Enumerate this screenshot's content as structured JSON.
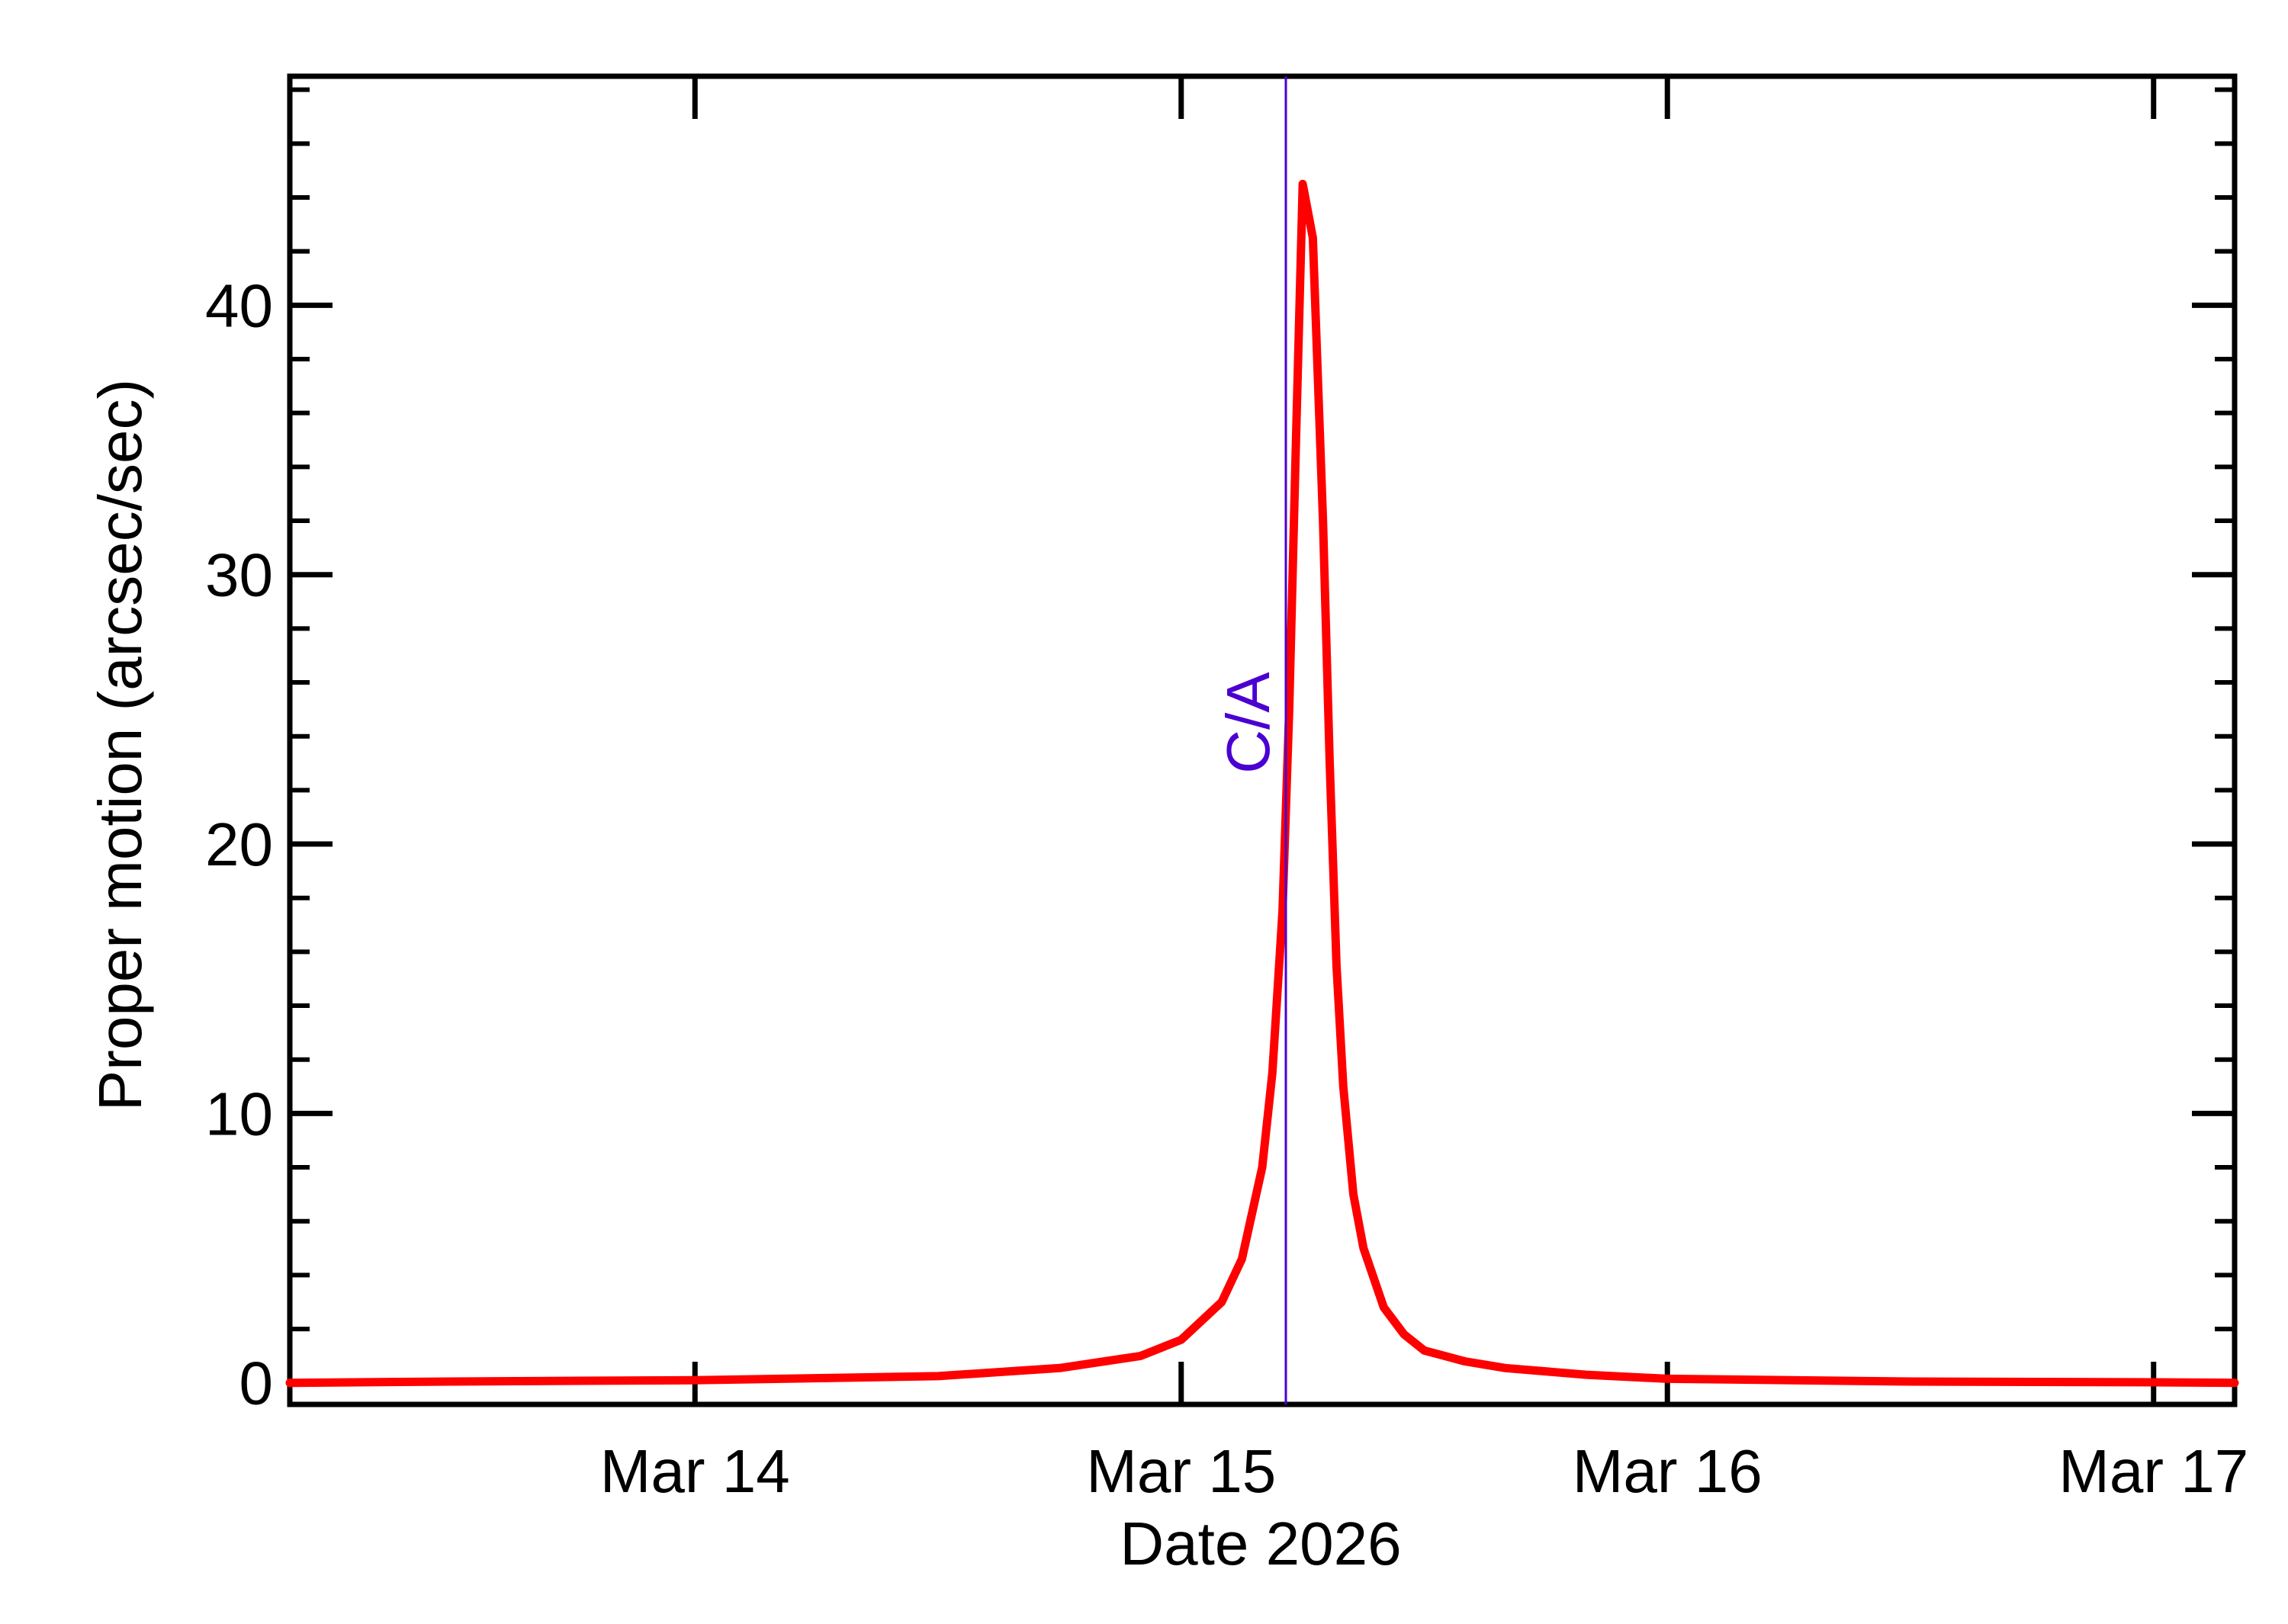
{
  "chart_data": {
    "type": "line",
    "xlabel": "Date 2026",
    "ylabel": "Proper motion (arcsec/sec)",
    "x_ticks": [
      {
        "value": "2026-03-14",
        "label": "Mar 14"
      },
      {
        "value": "2026-03-15",
        "label": "Mar 15"
      },
      {
        "value": "2026-03-16",
        "label": "Mar 16"
      },
      {
        "value": "2026-03-17",
        "label": "Mar 17"
      }
    ],
    "y_ticks": [
      0,
      10,
      20,
      30,
      40
    ],
    "xlim": [
      "2026-03-13 04:00",
      "2026-03-17 04:00"
    ],
    "ylim": [
      -0.8,
      48.5
    ],
    "series": [
      {
        "color": "#ff0000",
        "x": [
          "2026-03-13 04:00",
          "2026-03-13 12:00",
          "2026-03-14 00:00",
          "2026-03-14 12:00",
          "2026-03-14 18:00",
          "2026-03-14 22:00",
          "2026-03-15 00:00",
          "2026-03-15 02:00",
          "2026-03-15 03:00",
          "2026-03-15 04:00",
          "2026-03-15 04:30",
          "2026-03-15 05:00",
          "2026-03-15 05:20",
          "2026-03-15 05:40",
          "2026-03-15 06:00",
          "2026-03-15 06:30",
          "2026-03-15 07:00",
          "2026-03-15 07:20",
          "2026-03-15 07:40",
          "2026-03-15 08:00",
          "2026-03-15 08:30",
          "2026-03-15 09:00",
          "2026-03-15 10:00",
          "2026-03-15 11:00",
          "2026-03-15 12:00",
          "2026-03-15 14:00",
          "2026-03-15 16:00",
          "2026-03-15 20:00",
          "2026-03-16 00:00",
          "2026-03-16 12:00",
          "2026-03-17 00:00",
          "2026-03-17 04:00"
        ],
        "y": [
          0.0,
          0.05,
          0.1,
          0.25,
          0.55,
          1.0,
          1.6,
          3.0,
          4.6,
          8.0,
          11.5,
          17.5,
          25.0,
          35.0,
          44.5,
          42.5,
          32.0,
          23.0,
          15.5,
          11.0,
          7.0,
          5.0,
          2.8,
          1.8,
          1.2,
          0.8,
          0.55,
          0.3,
          0.15,
          0.05,
          0.02,
          0.0
        ]
      }
    ],
    "annotations": [
      {
        "label": "C/A",
        "x": "2026-03-15 05:10",
        "color": "#4b00d2"
      }
    ],
    "grid": false,
    "legend": "none"
  }
}
